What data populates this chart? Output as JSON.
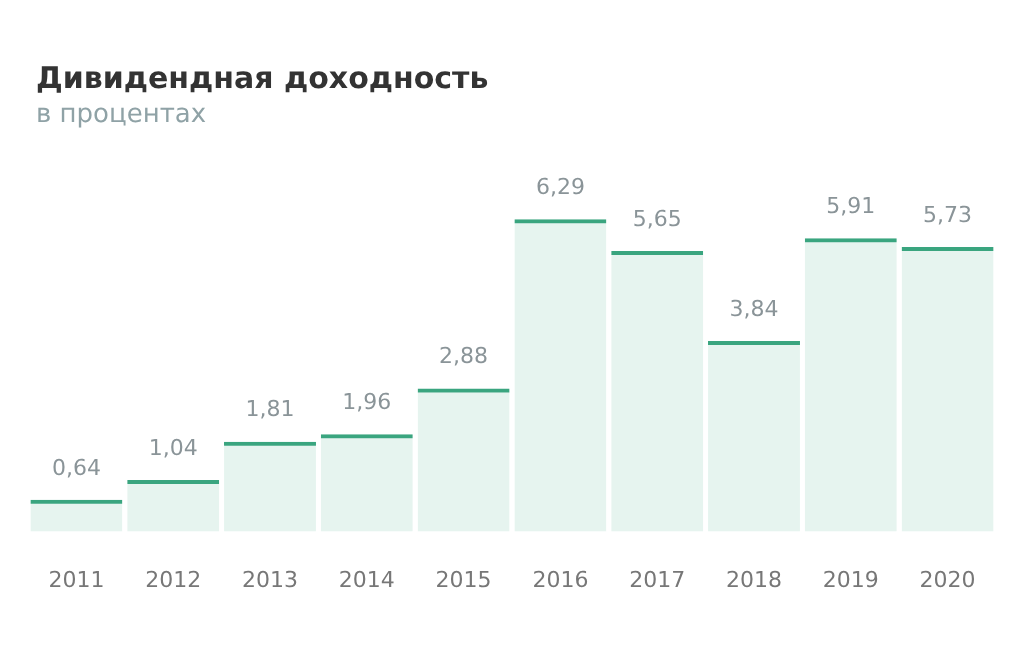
{
  "chart_data": {
    "type": "bar",
    "title": "Дивидендная доходность",
    "subtitle": "в процентах",
    "categories": [
      "2011",
      "2012",
      "2013",
      "2014",
      "2015",
      "2016",
      "2017",
      "2018",
      "2019",
      "2020"
    ],
    "values": [
      0.64,
      1.04,
      1.81,
      1.96,
      2.88,
      6.29,
      5.65,
      3.84,
      5.91,
      5.73
    ],
    "value_labels": [
      "0,64",
      "1,04",
      "1,81",
      "1,96",
      "2,88",
      "6,29",
      "5,65",
      "3,84",
      "5,91",
      "5,73"
    ],
    "color": "#3aa57f",
    "tick_labels": "x",
    "grid": false,
    "legend": false
  }
}
